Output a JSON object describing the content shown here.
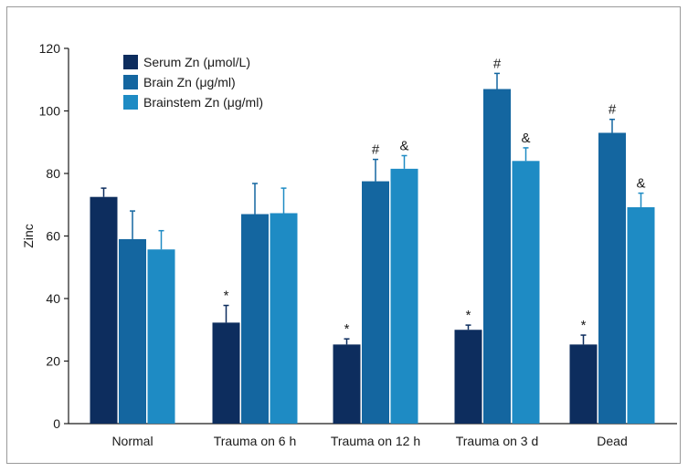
{
  "chart_data": {
    "type": "bar",
    "ylabel": "Zinc",
    "xlabel": "",
    "ylim": [
      0,
      120
    ],
    "yticks": [
      0,
      20,
      40,
      60,
      80,
      100,
      120
    ],
    "categories": [
      "Normal",
      "Trauma on 6 h",
      "Trauma on 12 h",
      "Trauma on 3 d",
      "Dead"
    ],
    "series": [
      {
        "name": "Serum Zn (μmol/L)",
        "color": "#0d2d5e",
        "values": [
          72.5,
          32.3,
          25.3,
          30.0,
          25.3
        ],
        "errors": [
          2.8,
          5.5,
          1.8,
          1.5,
          3.0
        ],
        "markers": [
          "",
          "*",
          "*",
          "*",
          "*"
        ]
      },
      {
        "name": "Brain Zn (μg/ml)",
        "color": "#1466a0",
        "values": [
          59.0,
          67.0,
          77.5,
          107.0,
          93.0
        ],
        "errors": [
          9.0,
          9.8,
          7.0,
          5.0,
          4.3
        ],
        "markers": [
          "",
          "",
          "#",
          "#",
          "#"
        ]
      },
      {
        "name": "Brainstem Zn (μg/ml)",
        "color": "#1e8bc4",
        "values": [
          55.7,
          67.3,
          81.5,
          84.0,
          69.2
        ],
        "errors": [
          6.0,
          8.0,
          4.2,
          4.2,
          4.5
        ],
        "markers": [
          "",
          "",
          "&",
          "&",
          "&"
        ]
      }
    ],
    "legend_position": "top-left"
  }
}
